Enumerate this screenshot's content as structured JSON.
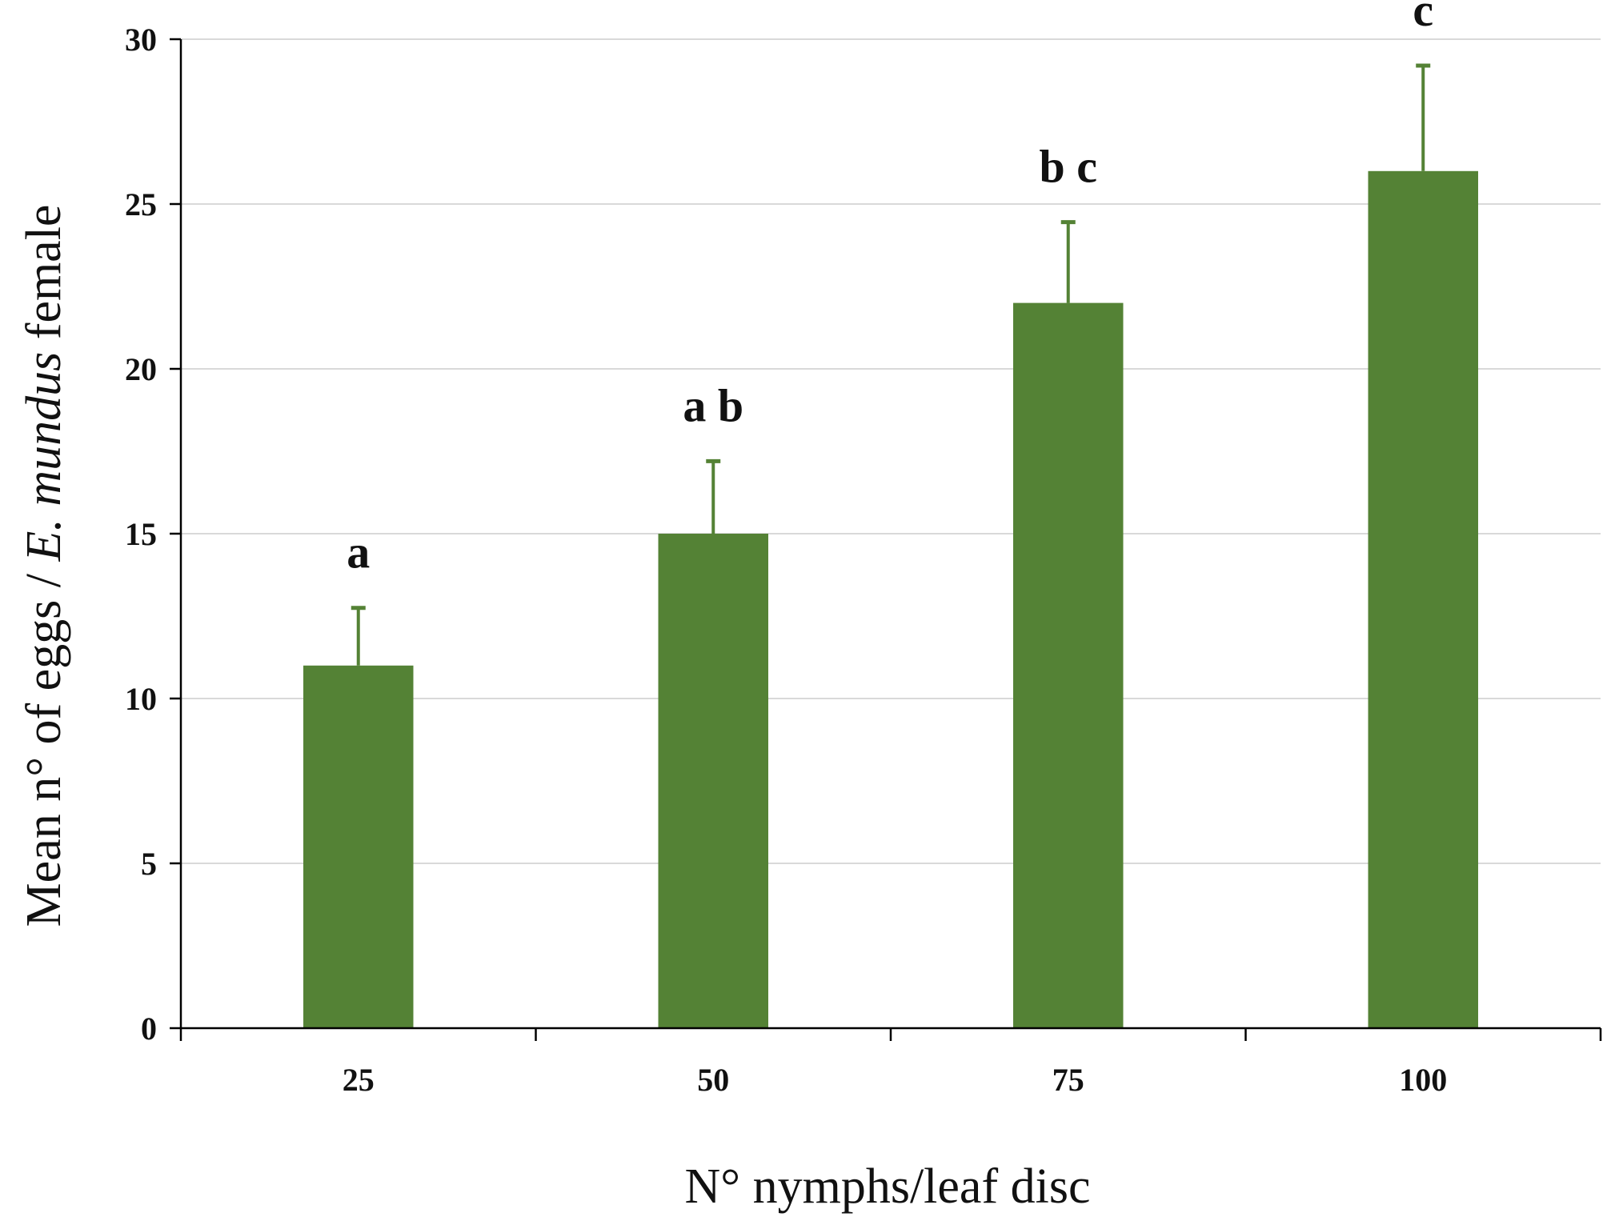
{
  "chart_data": {
    "type": "bar",
    "categories": [
      "25",
      "50",
      "75",
      "100"
    ],
    "values": [
      11,
      15,
      22,
      26
    ],
    "error": [
      1.75,
      2.2,
      2.45,
      3.2
    ],
    "significance": [
      "a",
      "a b",
      "b c",
      "c"
    ],
    "xlabel": "N° nymphs/leaf disc",
    "ylabel": {
      "prefix": "Mean n° of eggs / ",
      "italic": "E. mundus",
      "suffix": " female"
    },
    "ylim": [
      0,
      30
    ],
    "yticks": [
      "0",
      "5",
      "10",
      "15",
      "20",
      "25",
      "30"
    ],
    "grid": true,
    "bar_color": "#548235",
    "grid_color": "#d9d9d9",
    "axis_color": "#000000"
  }
}
